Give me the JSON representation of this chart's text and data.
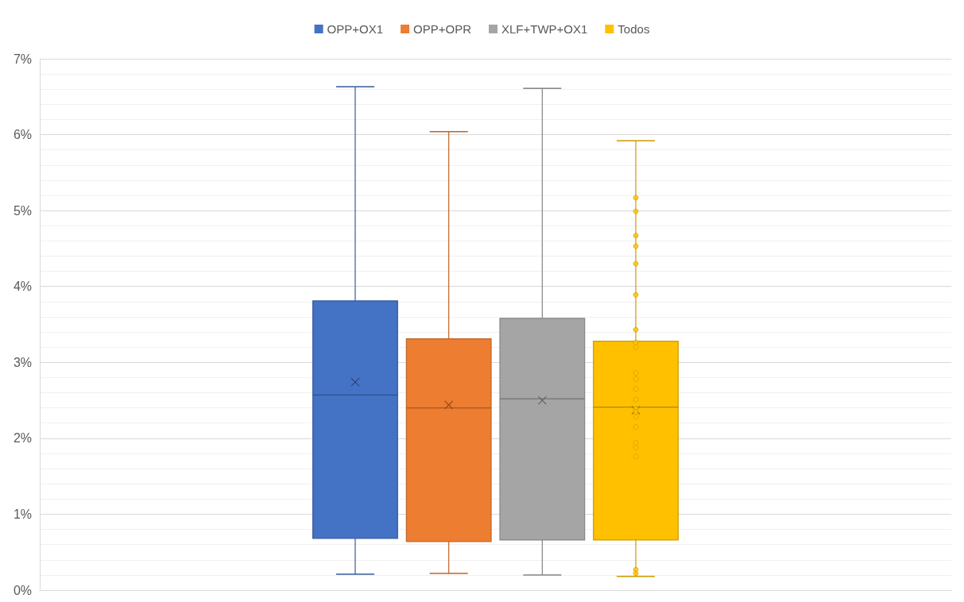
{
  "chart_data": {
    "type": "box",
    "categories": [
      null
    ],
    "series": [
      {
        "name": "OPP+OX1",
        "color": "#4472c4",
        "boxes": [
          {
            "low": 0.21,
            "q1": 0.68,
            "median": 2.57,
            "q3": 3.81,
            "high": 6.63,
            "mean": 2.74
          }
        ]
      },
      {
        "name": "OPP+OPR",
        "color": "#ed7d31",
        "boxes": [
          {
            "low": 0.22,
            "q1": 0.64,
            "median": 2.4,
            "q3": 3.31,
            "high": 6.04,
            "mean": 2.44
          }
        ]
      },
      {
        "name": "XLF+TWP+OX1",
        "color": "#a5a5a5",
        "boxes": [
          {
            "low": 0.2,
            "q1": 0.66,
            "median": 2.52,
            "q3": 3.58,
            "high": 6.61,
            "mean": 2.5
          }
        ]
      },
      {
        "name": "Todos",
        "color": "#ffc000",
        "boxes": [
          {
            "low": 0.18,
            "q1": 0.66,
            "median": 2.41,
            "q3": 3.28,
            "high": 5.92,
            "mean": 2.37
          }
        ]
      },
      {
        "type": "scatter",
        "color": "#ffc000",
        "x": [
          null,
          null,
          null,
          null,
          null,
          null,
          null,
          null,
          null,
          null,
          null,
          null,
          null,
          null,
          null,
          null,
          null,
          null,
          null,
          null,
          null,
          null
        ],
        "values": [
          5.17,
          4.99,
          4.67,
          4.53,
          4.3,
          3.89,
          3.43,
          3.26,
          3.2,
          2.86,
          2.78,
          2.65,
          2.51,
          2.39,
          2.35,
          2.28,
          2.15,
          1.94,
          1.88,
          1.76,
          0.27,
          0.22
        ]
      }
    ],
    "ylim": [
      0,
      7
    ],
    "yticks": [
      {
        "value": 0,
        "label": "0%"
      },
      {
        "value": 0.2,
        "label": null
      },
      {
        "value": 0.4,
        "label": null
      },
      {
        "value": 0.6,
        "label": null
      },
      {
        "value": 0.8,
        "label": null
      },
      {
        "value": 1,
        "label": "1%"
      },
      {
        "value": 1.2,
        "label": null
      },
      {
        "value": 1.4,
        "label": null
      },
      {
        "value": 1.6,
        "label": null
      },
      {
        "value": 1.8,
        "label": null
      },
      {
        "value": 2,
        "label": "2%"
      },
      {
        "value": 2.2,
        "label": null
      },
      {
        "value": 2.4,
        "label": null
      },
      {
        "value": 2.6,
        "label": null
      },
      {
        "value": 2.8,
        "label": null
      },
      {
        "value": 3,
        "label": "3%"
      },
      {
        "value": 3.2,
        "label": null
      },
      {
        "value": 3.4,
        "label": null
      },
      {
        "value": 3.6,
        "label": null
      },
      {
        "value": 3.8,
        "label": null
      },
      {
        "value": 4,
        "label": "4%"
      },
      {
        "value": 4.2,
        "label": null
      },
      {
        "value": 4.4,
        "label": null
      },
      {
        "value": 4.6,
        "label": null
      },
      {
        "value": 4.8,
        "label": null
      },
      {
        "value": 5,
        "label": "5%"
      },
      {
        "value": 5.2,
        "label": null
      },
      {
        "value": 5.4,
        "label": null
      },
      {
        "value": 5.6,
        "label": null
      },
      {
        "value": 5.8,
        "label": null
      },
      {
        "value": 6,
        "label": "6%"
      },
      {
        "value": 6.2,
        "label": null
      },
      {
        "value": 6.4,
        "label": null
      },
      {
        "value": 6.6,
        "label": null
      },
      {
        "value": 6.8,
        "label": null
      },
      {
        "value": 7,
        "label": "7%"
      }
    ],
    "grid": "y",
    "legend": "top",
    "marker": "circle"
  }
}
